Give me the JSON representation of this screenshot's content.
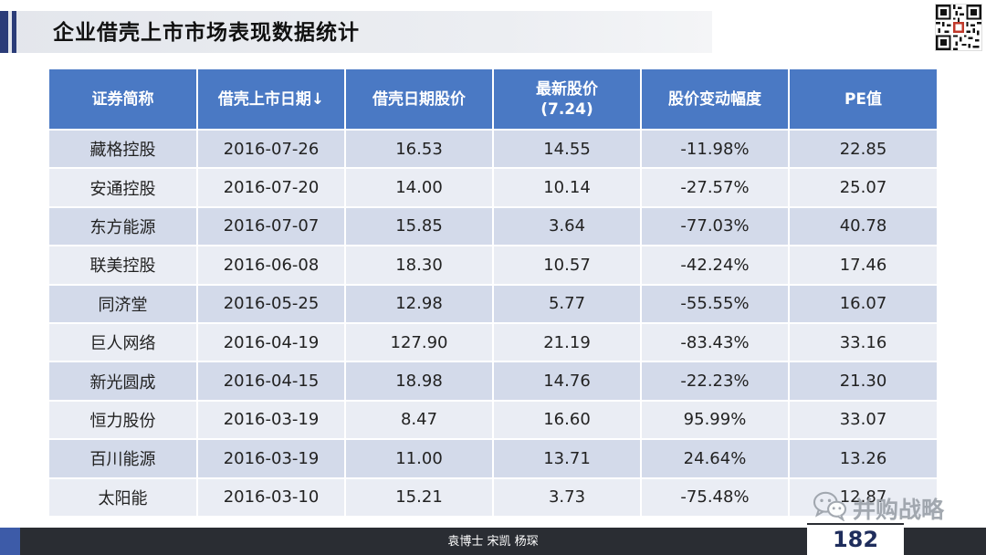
{
  "header": {
    "title": "企业借壳上市市场表现数据统计"
  },
  "qr_code": {
    "icon": "qr-code-icon"
  },
  "table": {
    "columns": [
      "证券简称",
      "借壳上市日期↓",
      "借壳日期股价",
      "最新股价\n(7.24)",
      "股价变动幅度",
      "PE值"
    ],
    "rows": [
      [
        "藏格控股",
        "2016-07-26",
        "16.53",
        "14.55",
        "-11.98%",
        "22.85"
      ],
      [
        "安通控股",
        "2016-07-20",
        "14.00",
        "10.14",
        "-27.57%",
        "25.07"
      ],
      [
        "东方能源",
        "2016-07-07",
        "15.85",
        "3.64",
        "-77.03%",
        "40.78"
      ],
      [
        "联美控股",
        "2016-06-08",
        "18.30",
        "10.57",
        "-42.24%",
        "17.46"
      ],
      [
        "同济堂",
        "2016-05-25",
        "12.98",
        "5.77",
        "-55.55%",
        "16.07"
      ],
      [
        "巨人网络",
        "2016-04-19",
        "127.90",
        "21.19",
        "-83.43%",
        "33.16"
      ],
      [
        "新光圆成",
        "2016-04-15",
        "18.98",
        "14.76",
        "-22.23%",
        "21.30"
      ],
      [
        "恒力股份",
        "2016-03-19",
        "8.47",
        "16.60",
        "95.99%",
        "33.07"
      ],
      [
        "百川能源",
        "2016-03-19",
        "11.00",
        "13.71",
        "24.64%",
        "13.26"
      ],
      [
        "太阳能",
        "2016-03-10",
        "15.21",
        "3.73",
        "-75.48%",
        "12.87"
      ]
    ]
  },
  "watermark": {
    "text": "并购战略",
    "icon": "wechat-icon"
  },
  "footer": {
    "authors": "袁博士  宋凯  杨琛",
    "page_number": "182"
  },
  "colors": {
    "header_bg": "#4a79c4",
    "row_odd": "#d3daea",
    "row_even": "#eaedf4",
    "accent": "#2b3c78",
    "footer_bg": "#2a2d33"
  }
}
